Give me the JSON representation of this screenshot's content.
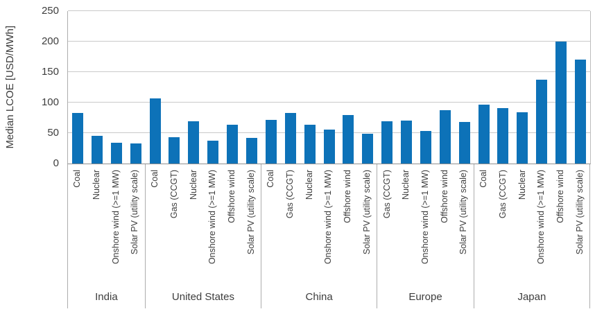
{
  "chart_data": {
    "type": "bar",
    "title": "",
    "ylabel": "Median LCOE [USD/MWh]",
    "xlabel": "",
    "ylim": [
      0,
      250
    ],
    "yticks": [
      0,
      50,
      100,
      150,
      200,
      250
    ],
    "grid": true,
    "legend": "none",
    "bar_color": "#0d72b8",
    "axis_color": "#8f8f8f",
    "gridline_color": "#c9c9c9",
    "groups": [
      {
        "region": "India",
        "categories": [
          "Coal",
          "Nuclear",
          "Onshore wind (>=1 MW)",
          "Solar PV (utility scale)"
        ],
        "values": [
          83,
          46,
          34,
          33
        ]
      },
      {
        "region": "United States",
        "categories": [
          "Coal",
          "Gas (CCGT)",
          "Nuclear",
          "Onshore wind (>=1 MW)",
          "Offshore wind",
          "Solar PV (utility scale)"
        ],
        "values": [
          107,
          43,
          69,
          37,
          64,
          42
        ]
      },
      {
        "region": "China",
        "categories": [
          "Coal",
          "Gas (CCGT)",
          "Nuclear",
          "Onshore wind (>=1 MW)",
          "Offshore wind",
          "Solar PV (utility scale)"
        ],
        "values": [
          72,
          83,
          64,
          56,
          80,
          49
        ]
      },
      {
        "region": "Europe",
        "categories": [
          "Gas (CCGT)",
          "Nuclear",
          "Onshore wind (>=1 MW)",
          "Offshore wind",
          "Solar PV (utility scale)"
        ],
        "values": [
          69,
          70,
          53,
          87,
          68
        ]
      },
      {
        "region": "Japan",
        "categories": [
          "Coal",
          "Gas (CCGT)",
          "Nuclear",
          "Onshore wind (>=1 MW)",
          "Offshore wind",
          "Solar PV (utility scale)"
        ],
        "values": [
          97,
          91,
          84,
          138,
          200,
          170
        ]
      }
    ]
  }
}
